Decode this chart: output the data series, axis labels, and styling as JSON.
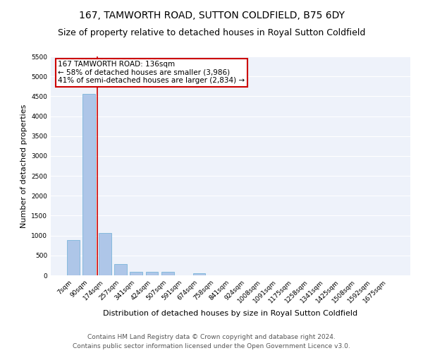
{
  "title": "167, TAMWORTH ROAD, SUTTON COLDFIELD, B75 6DY",
  "subtitle": "Size of property relative to detached houses in Royal Sutton Coldfield",
  "xlabel": "Distribution of detached houses by size in Royal Sutton Coldfield",
  "ylabel": "Number of detached properties",
  "categories": [
    "7sqm",
    "90sqm",
    "174sqm",
    "257sqm",
    "341sqm",
    "424sqm",
    "507sqm",
    "591sqm",
    "674sqm",
    "758sqm",
    "841sqm",
    "924sqm",
    "1008sqm",
    "1091sqm",
    "1175sqm",
    "1258sqm",
    "1341sqm",
    "1425sqm",
    "1508sqm",
    "1592sqm",
    "1675sqm"
  ],
  "values": [
    880,
    4560,
    1060,
    290,
    90,
    80,
    80,
    0,
    50,
    0,
    0,
    0,
    0,
    0,
    0,
    0,
    0,
    0,
    0,
    0,
    0
  ],
  "bar_color": "#aec6e8",
  "bar_edge_color": "#6baed6",
  "vline_color": "#cc0000",
  "vline_position": 1.5,
  "annotation_text": "167 TAMWORTH ROAD: 136sqm\n← 58% of detached houses are smaller (3,986)\n41% of semi-detached houses are larger (2,834) →",
  "ylim": [
    0,
    5500
  ],
  "yticks": [
    0,
    500,
    1000,
    1500,
    2000,
    2500,
    3000,
    3500,
    4000,
    4500,
    5000,
    5500
  ],
  "background_color": "#eef2fa",
  "grid_color": "#ffffff",
  "footer_line1": "Contains HM Land Registry data © Crown copyright and database right 2024.",
  "footer_line2": "Contains public sector information licensed under the Open Government Licence v3.0.",
  "title_fontsize": 10,
  "subtitle_fontsize": 9,
  "annotation_fontsize": 7.5,
  "ylabel_fontsize": 8,
  "xlabel_fontsize": 8,
  "footer_fontsize": 6.5,
  "tick_fontsize": 6.5
}
